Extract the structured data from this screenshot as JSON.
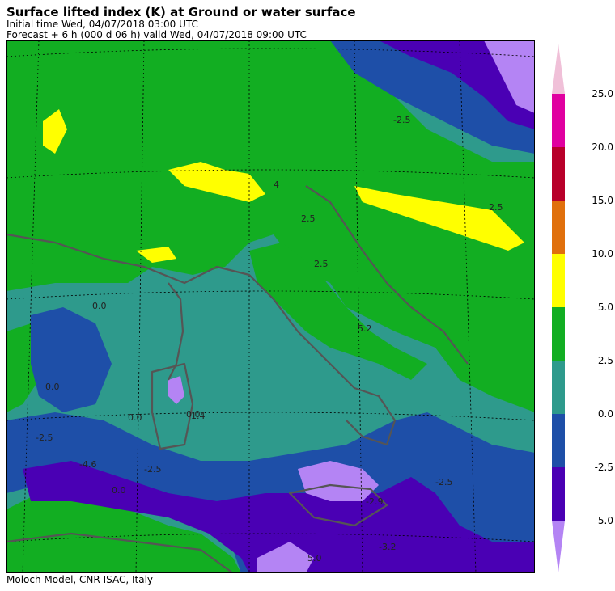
{
  "header": {
    "title": "Surface lifted index (K) at Ground or water surface",
    "initial_time": "Initial time  Wed, 04/07/2018  03:00 UTC",
    "forecast": "Forecast  +   6 h  (000 d 06 h)  valid Wed, 04/07/2018 09:00 UTC"
  },
  "footer": {
    "credit": "Moloch Model, CNR-ISAC, Italy"
  },
  "legend": {
    "bins": [
      {
        "from": -5.0,
        "to": -2.5,
        "color": "#4a00b4"
      },
      {
        "from": -2.5,
        "to": 0.0,
        "color": "#1e4fa8"
      },
      {
        "from": 0.0,
        "to": 2.5,
        "color": "#2e9a8c"
      },
      {
        "from": 2.5,
        "to": 5.0,
        "color": "#12ae22"
      },
      {
        "from": 5.0,
        "to": 10.0,
        "color": "#ffff00"
      },
      {
        "from": 10.0,
        "to": 15.0,
        "color": "#e0700c"
      },
      {
        "from": 15.0,
        "to": 20.0,
        "color": "#b8002a"
      },
      {
        "from": 20.0,
        "to": 25.0,
        "color": "#e000a0"
      }
    ],
    "below_color": "#b484f4",
    "above_color": "#f0c0d8",
    "tick_labels": [
      "25.0",
      "20.0",
      "15.0",
      "10.0",
      "5.0",
      "2.5",
      "0.0",
      "-2.5",
      "-5.0"
    ]
  },
  "map_labels": [
    {
      "text": "0.0"
    },
    {
      "text": "0.0"
    },
    {
      "text": "0.0"
    },
    {
      "text": "0.0"
    },
    {
      "text": "-2.5"
    },
    {
      "text": "-4.6"
    },
    {
      "text": "-2.5"
    },
    {
      "text": "0.0"
    },
    {
      "text": "2.5"
    },
    {
      "text": "-2.5"
    },
    {
      "text": "5.0"
    },
    {
      "text": "-2.9"
    },
    {
      "text": "-1.4"
    },
    {
      "text": "4"
    },
    {
      "text": "2.5"
    },
    {
      "text": "5.2"
    },
    {
      "text": "-2.5"
    },
    {
      "text": "-3.2"
    },
    {
      "text": "2.5"
    }
  ]
}
